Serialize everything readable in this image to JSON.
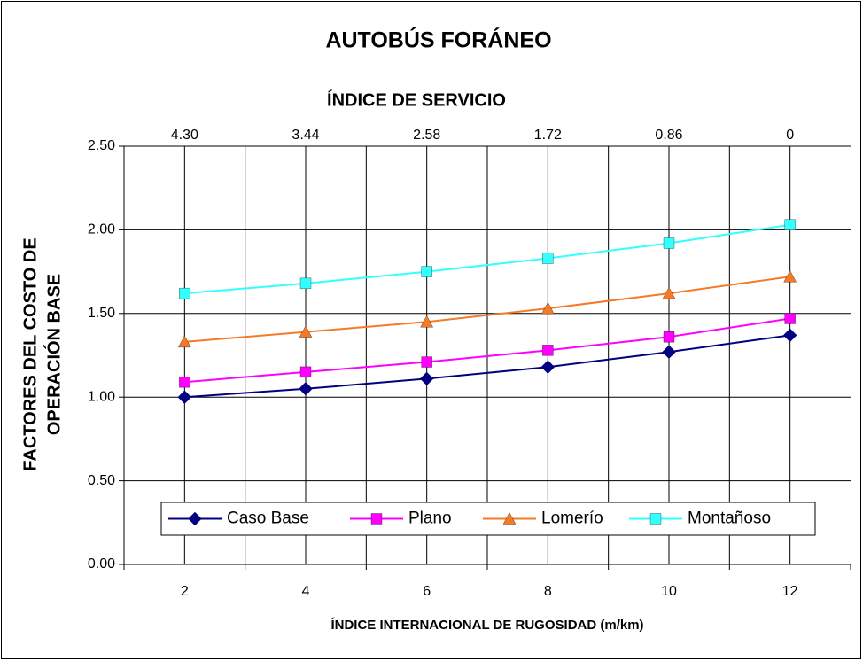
{
  "chart_data": {
    "type": "line",
    "title": "AUTOBÚS FORÁNEO",
    "top_axis_label": "ÍNDICE DE SERVICIO",
    "top_categories": [
      "4.30",
      "3.44",
      "2.58",
      "1.72",
      "0.86",
      "0"
    ],
    "x_label": "ÍNDICE INTERNACIONAL DE RUGOSIDAD (m/km)",
    "y_label": [
      "FACTORES DEL COSTO DE",
      "OPERACIÓN BASE"
    ],
    "categories": [
      "2",
      "4",
      "6",
      "8",
      "10",
      "12"
    ],
    "series": [
      {
        "name": "Caso Base",
        "color": "#000080",
        "marker": "diamond",
        "values": [
          1.0,
          1.05,
          1.11,
          1.18,
          1.27,
          1.37
        ]
      },
      {
        "name": "Plano",
        "color": "#ff00ff",
        "marker": "square",
        "values": [
          1.09,
          1.15,
          1.21,
          1.28,
          1.36,
          1.47
        ]
      },
      {
        "name": "Lomerío",
        "color": "#f47a26",
        "marker": "triangle",
        "values": [
          1.33,
          1.39,
          1.45,
          1.53,
          1.62,
          1.72
        ]
      },
      {
        "name": "Montañoso",
        "color": "#33ffff",
        "marker": "square",
        "values": [
          1.62,
          1.68,
          1.75,
          1.83,
          1.92,
          2.03
        ]
      }
    ],
    "ylim": [
      0,
      2.5
    ],
    "yticks": [
      {
        "value": 0,
        "label": "0.00"
      },
      {
        "value": 0.5,
        "label": "0.50"
      },
      {
        "value": 1,
        "label": "1.00"
      },
      {
        "value": 1.5,
        "label": "1.50"
      },
      {
        "value": 2,
        "label": "2.00"
      },
      {
        "value": 2.5,
        "label": "2.50"
      }
    ],
    "grid": true,
    "legend": "bottom"
  }
}
